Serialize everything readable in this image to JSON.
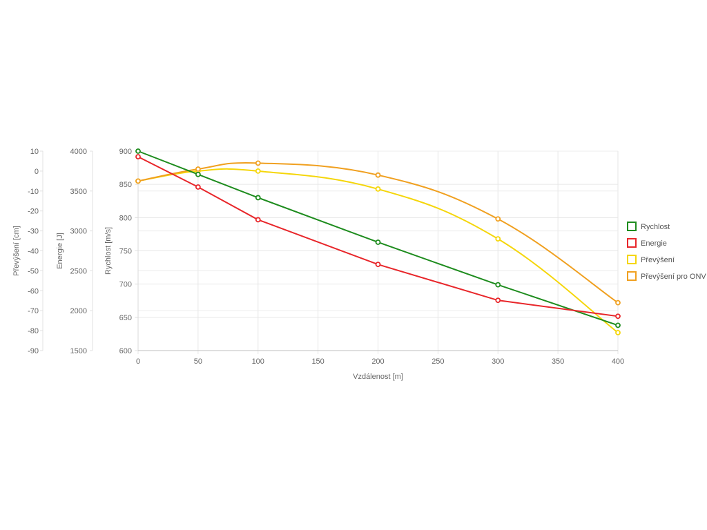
{
  "chart_data": {
    "type": "line",
    "xlabel": "Vzdálenost [m]",
    "x_ticks": [
      "0",
      "50",
      "100",
      "150",
      "200",
      "250",
      "300",
      "350",
      "400"
    ],
    "xlim": [
      0,
      400
    ],
    "grid": true,
    "legend_position": "right",
    "axes": [
      {
        "id": "prevyseni",
        "label": "Převýšení [cm]",
        "ylim": [
          -90,
          10
        ],
        "ticks": [
          "10",
          "0",
          "-10",
          "-20",
          "-30",
          "-40",
          "-50",
          "-60",
          "-70",
          "-80",
          "-90"
        ]
      },
      {
        "id": "energie",
        "label": "Energie [J]",
        "ylim": [
          1500,
          4000
        ],
        "ticks": [
          "4000",
          "3500",
          "3000",
          "2500",
          "2000",
          "1500"
        ]
      },
      {
        "id": "rychlost",
        "label": "Rychlost [m/s]",
        "ylim": [
          600,
          900
        ],
        "ticks": [
          "900",
          "850",
          "800",
          "750",
          "700",
          "650",
          "600"
        ]
      }
    ],
    "series": [
      {
        "name": "Rychlost",
        "color": "#1e8c1e",
        "axis": "rychlost",
        "smooth": false,
        "x": [
          0,
          50,
          100,
          200,
          300,
          400
        ],
        "y": [
          900,
          865,
          830,
          763,
          699,
          638
        ]
      },
      {
        "name": "Energie",
        "color": "#e8262a",
        "axis": "energie",
        "smooth": false,
        "x": [
          0,
          50,
          100,
          200,
          300,
          400
        ],
        "y": [
          3930,
          3550,
          3140,
          2580,
          2130,
          1930
        ]
      },
      {
        "name": "Převýšení",
        "color": "#f5d60a",
        "axis": "prevyseni",
        "smooth": true,
        "x": [
          0,
          50,
          100,
          200,
          300,
          400
        ],
        "y": [
          -5,
          0,
          0,
          -9,
          -34,
          -81
        ]
      },
      {
        "name": "Převýšení pro ONV",
        "color": "#f0a020",
        "axis": "prevyseni",
        "smooth": true,
        "x": [
          0,
          50,
          100,
          200,
          300,
          400
        ],
        "y": [
          -5,
          1,
          4,
          -2,
          -24,
          -66
        ]
      }
    ]
  }
}
